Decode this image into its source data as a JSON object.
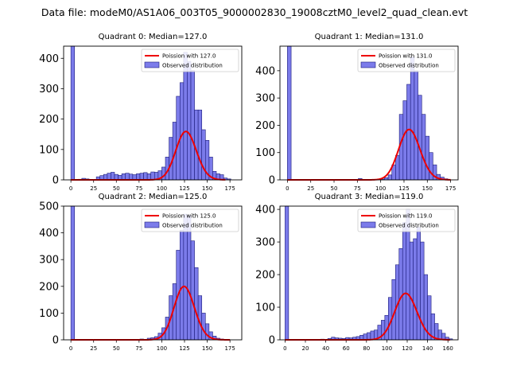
{
  "figure": {
    "suptitle": "Data file: modeM0/AS1A06_003T05_9000002830_19008cztM0_level2_quad_clean.evt"
  },
  "colors": {
    "hist_fill": "#7b7bea",
    "hist_edge": "#1c1c7a",
    "poisson_line": "#ee0000",
    "axes": "#000000"
  },
  "chart_data": [
    {
      "type": "bar",
      "title": "Quadrant 0: Median=127.0",
      "median": 127.0,
      "legend": {
        "line_label": "Poission with 127.0",
        "hist_label": "Observed distribution",
        "placement": "top-right"
      },
      "xlim": [
        -8,
        188
      ],
      "ylim": [
        0,
        440
      ],
      "xticks": [
        0,
        25,
        50,
        75,
        100,
        125,
        150,
        175
      ],
      "yticks": [
        0,
        100,
        200,
        300,
        400
      ],
      "bin_width": 4,
      "bins": [
        [
          0,
          440
        ],
        [
          8,
          2
        ],
        [
          12,
          5
        ],
        [
          16,
          3
        ],
        [
          28,
          10
        ],
        [
          32,
          14
        ],
        [
          36,
          18
        ],
        [
          40,
          22
        ],
        [
          44,
          25
        ],
        [
          48,
          18
        ],
        [
          52,
          15
        ],
        [
          56,
          20
        ],
        [
          60,
          22
        ],
        [
          64,
          19
        ],
        [
          68,
          17
        ],
        [
          72,
          20
        ],
        [
          76,
          22
        ],
        [
          80,
          24
        ],
        [
          84,
          20
        ],
        [
          88,
          26
        ],
        [
          92,
          25
        ],
        [
          96,
          30
        ],
        [
          100,
          42
        ],
        [
          104,
          75
        ],
        [
          108,
          140
        ],
        [
          112,
          190
        ],
        [
          116,
          275
        ],
        [
          120,
          320
        ],
        [
          124,
          420
        ],
        [
          128,
          390
        ],
        [
          132,
          360
        ],
        [
          136,
          230
        ],
        [
          140,
          230
        ],
        [
          144,
          165
        ],
        [
          148,
          130
        ],
        [
          152,
          75
        ],
        [
          156,
          28
        ],
        [
          160,
          20
        ],
        [
          164,
          17
        ],
        [
          168,
          6
        ],
        [
          172,
          3
        ]
      ],
      "poisson_mean": 127.0,
      "poisson_scale": 4500,
      "poisson_range": [
        0,
        170
      ]
    },
    {
      "type": "bar",
      "title": "Quadrant 1: Median=131.0",
      "median": 131.0,
      "legend": {
        "line_label": "Poission with 131.0",
        "hist_label": "Observed distribution",
        "placement": "top-right"
      },
      "xlim": [
        -8,
        183
      ],
      "ylim": [
        0,
        490
      ],
      "xticks": [
        0,
        25,
        50,
        75,
        100,
        125,
        150,
        175
      ],
      "yticks": [
        0,
        100,
        200,
        300,
        400
      ],
      "bin_width": 4,
      "bins": [
        [
          0,
          490
        ],
        [
          76,
          5
        ],
        [
          100,
          3
        ],
        [
          104,
          8
        ],
        [
          108,
          18
        ],
        [
          112,
          55
        ],
        [
          116,
          90
        ],
        [
          120,
          240
        ],
        [
          124,
          290
        ],
        [
          128,
          350
        ],
        [
          132,
          450
        ],
        [
          136,
          400
        ],
        [
          140,
          310
        ],
        [
          144,
          240
        ],
        [
          148,
          160
        ],
        [
          152,
          100
        ],
        [
          156,
          55
        ],
        [
          160,
          20
        ],
        [
          164,
          10
        ],
        [
          168,
          4
        ]
      ],
      "poisson_mean": 131.0,
      "poisson_scale": 5300,
      "poisson_range": [
        0,
        175
      ]
    },
    {
      "type": "bar",
      "title": "Quadrant 2: Median=125.0",
      "median": 125.0,
      "legend": {
        "line_label": "Poission with 125.0",
        "hist_label": "Observed distribution",
        "placement": "top-right"
      },
      "xlim": [
        -8,
        188
      ],
      "ylim": [
        0,
        500
      ],
      "xticks": [
        0,
        25,
        50,
        75,
        100,
        125,
        150,
        175
      ],
      "yticks": [
        0,
        100,
        200,
        300,
        400,
        500
      ],
      "bin_width": 4,
      "bins": [
        [
          0,
          500
        ],
        [
          76,
          3
        ],
        [
          84,
          6
        ],
        [
          88,
          8
        ],
        [
          92,
          12
        ],
        [
          96,
          25
        ],
        [
          100,
          45
        ],
        [
          104,
          85
        ],
        [
          108,
          165
        ],
        [
          112,
          210
        ],
        [
          116,
          335
        ],
        [
          120,
          410
        ],
        [
          124,
          470
        ],
        [
          128,
          465
        ],
        [
          132,
          370
        ],
        [
          136,
          270
        ],
        [
          140,
          165
        ],
        [
          144,
          100
        ],
        [
          148,
          60
        ],
        [
          152,
          30
        ],
        [
          156,
          14
        ],
        [
          160,
          6
        ],
        [
          164,
          3
        ]
      ],
      "poisson_mean": 125.0,
      "poisson_scale": 5600,
      "poisson_range": [
        0,
        175
      ]
    },
    {
      "type": "bar",
      "title": "Quadrant 3: Median=119.0",
      "median": 119.0,
      "legend": {
        "line_label": "Poission with 119.0",
        "hist_label": "Observed distribution",
        "placement": "top-right"
      },
      "xlim": [
        -5,
        170
      ],
      "ylim": [
        0,
        410
      ],
      "xticks": [
        0,
        20,
        40,
        60,
        80,
        100,
        120,
        140,
        160
      ],
      "yticks": [
        0,
        100,
        200,
        300,
        400
      ],
      "bin_width": 3.5,
      "bins": [
        [
          0,
          410
        ],
        [
          35,
          2
        ],
        [
          42,
          4
        ],
        [
          45.5,
          8
        ],
        [
          49,
          6
        ],
        [
          52.5,
          5
        ],
        [
          56,
          4
        ],
        [
          59.5,
          7
        ],
        [
          63,
          6
        ],
        [
          66.5,
          8
        ],
        [
          70,
          10
        ],
        [
          73.5,
          14
        ],
        [
          77,
          18
        ],
        [
          80.5,
          22
        ],
        [
          84,
          27
        ],
        [
          87.5,
          30
        ],
        [
          91,
          45
        ],
        [
          94.5,
          60
        ],
        [
          98,
          75
        ],
        [
          101.5,
          130
        ],
        [
          105,
          185
        ],
        [
          108.5,
          230
        ],
        [
          112,
          280
        ],
        [
          115.5,
          360
        ],
        [
          119,
          400
        ],
        [
          122.5,
          300
        ],
        [
          126,
          310
        ],
        [
          129.5,
          345
        ],
        [
          133,
          300
        ],
        [
          136.5,
          200
        ],
        [
          140,
          135
        ],
        [
          143.5,
          80
        ],
        [
          147,
          50
        ],
        [
          150.5,
          30
        ],
        [
          154,
          20
        ],
        [
          157.5,
          8
        ],
        [
          161,
          3
        ]
      ],
      "poisson_mean": 119.0,
      "poisson_scale": 3900,
      "poisson_range": [
        0,
        162
      ]
    }
  ]
}
